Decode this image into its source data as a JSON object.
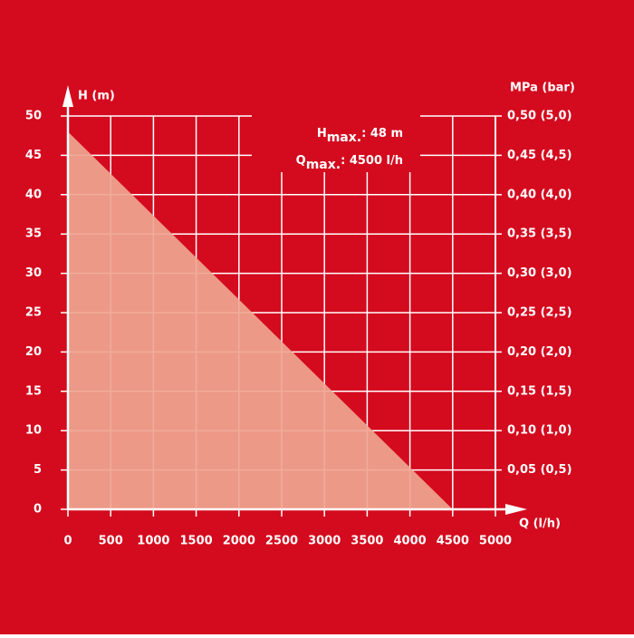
{
  "chart_data": {
    "type": "area",
    "x": [
      0,
      4500
    ],
    "values": [
      48,
      0
    ],
    "color": "#efa690",
    "background": "#d40a1e",
    "xlabel": "Q (l/h)",
    "ylabel": "H (m)",
    "y2label": "MPa (bar)",
    "xlim": [
      0,
      5000
    ],
    "xticks": [
      0,
      500,
      1000,
      1500,
      2000,
      2500,
      3000,
      3500,
      4000,
      4500,
      5000
    ],
    "ylim": [
      0,
      50
    ],
    "yticks": [
      0,
      5,
      10,
      15,
      20,
      25,
      30,
      35,
      40,
      45,
      50
    ],
    "y2lim": [
      0,
      0.5
    ],
    "y2ticks": [
      {
        "value": 0.05,
        "label": "0,05 (0,5)"
      },
      {
        "value": 0.1,
        "label": "0,10 (1,0)"
      },
      {
        "value": 0.15,
        "label": "0,15 (1,5)"
      },
      {
        "value": 0.2,
        "label": "0,20 (2,0)"
      },
      {
        "value": 0.25,
        "label": "0,25 (2,5)"
      },
      {
        "value": 0.3,
        "label": "0,30 (3,0)"
      },
      {
        "value": 0.35,
        "label": "0,35 (3,5)"
      },
      {
        "value": 0.4,
        "label": "0,40 (4,0)"
      },
      {
        "value": 0.45,
        "label": "0,45 (4,5)"
      },
      {
        "value": 0.5,
        "label": "0,50 (5,0)"
      }
    ],
    "grid": true,
    "annotations": [
      {
        "base": "H",
        "sub": "max.",
        "text": ": 48 m"
      },
      {
        "base": "Q",
        "sub": "max.",
        "text": ": 4500 l/h"
      }
    ]
  }
}
